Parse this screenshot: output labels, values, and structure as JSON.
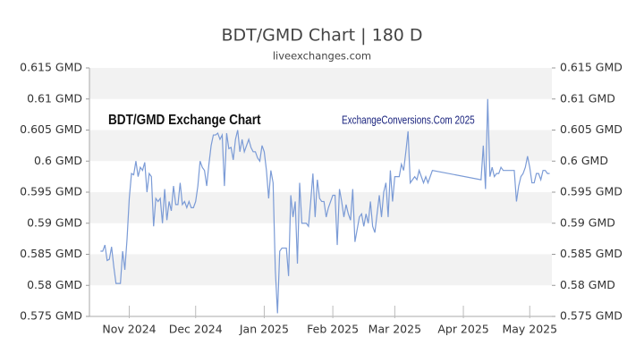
{
  "chart_data": {
    "type": "line",
    "title": "BDT/GMD Chart | 180 D",
    "subtitle": "liveexchanges.com",
    "annotations": [
      "BDT/GMD Exchange Chart",
      "ExchangeConversions.Com 2025"
    ],
    "color": "#7b9bd6",
    "band_color": "#f2f2f2",
    "x": [
      5,
      6,
      7,
      8,
      9,
      10,
      11,
      12,
      13,
      14,
      15,
      16,
      17,
      18,
      19,
      20,
      21,
      22,
      23,
      24,
      25,
      26,
      27,
      28,
      29,
      30,
      31,
      32,
      33,
      34,
      35,
      36,
      37,
      38,
      39,
      40,
      41,
      42,
      43,
      44,
      45,
      46,
      47,
      48,
      49,
      50,
      51,
      52,
      53,
      54,
      55,
      56,
      57,
      58,
      59,
      60,
      61,
      62,
      63,
      64,
      65,
      66,
      67,
      68,
      69,
      70,
      71,
      72,
      73,
      74,
      75,
      76,
      77,
      78,
      79,
      80,
      81,
      82,
      83,
      84,
      85,
      86,
      87,
      88,
      89,
      90,
      91,
      92,
      93,
      94,
      95,
      96,
      97,
      98,
      99,
      100,
      101,
      102,
      103,
      104,
      105,
      106,
      107,
      108,
      109,
      110,
      111,
      112,
      113,
      114,
      115,
      116,
      117,
      118,
      119,
      120,
      121,
      122,
      123,
      124,
      125,
      126,
      127,
      128,
      129,
      130,
      131,
      132,
      133,
      134,
      135,
      136,
      137,
      138,
      139,
      140,
      141,
      142,
      143,
      144,
      145,
      146,
      147,
      148,
      149,
      150,
      151,
      152,
      153,
      154,
      155,
      177,
      178,
      179,
      180,
      181,
      182,
      183,
      184,
      185,
      186,
      187,
      188,
      189,
      190,
      191,
      192,
      193,
      194,
      195,
      196,
      197,
      198,
      199,
      200,
      201,
      202,
      203,
      204,
      205,
      206,
      207,
      208
    ],
    "values": [
      0.5855,
      0.5855,
      0.5865,
      0.584,
      0.5842,
      0.5862,
      0.583,
      0.5803,
      0.5803,
      0.5803,
      0.5855,
      0.5825,
      0.5875,
      0.594,
      0.598,
      0.5978,
      0.6,
      0.5975,
      0.599,
      0.5985,
      0.5998,
      0.595,
      0.598,
      0.5975,
      0.5895,
      0.594,
      0.5935,
      0.594,
      0.59,
      0.5955,
      0.5905,
      0.5935,
      0.592,
      0.596,
      0.593,
      0.593,
      0.5965,
      0.593,
      0.5935,
      0.5925,
      0.5935,
      0.5925,
      0.5925,
      0.5935,
      0.596,
      0.6,
      0.599,
      0.5985,
      0.596,
      0.5995,
      0.6025,
      0.6042,
      0.6042,
      0.6045,
      0.6035,
      0.6042,
      0.596,
      0.6045,
      0.602,
      0.6022,
      0.6002,
      0.6035,
      0.605,
      0.6015,
      0.6035,
      0.6015,
      0.6025,
      0.6035,
      0.6022,
      0.6015,
      0.6015,
      0.6005,
      0.6,
      0.6025,
      0.6015,
      0.5985,
      0.594,
      0.5985,
      0.5965,
      0.5825,
      0.5755,
      0.5855,
      0.586,
      0.586,
      0.586,
      0.5815,
      0.5945,
      0.591,
      0.5935,
      0.5835,
      0.5965,
      0.59,
      0.59,
      0.59,
      0.5895,
      0.5935,
      0.598,
      0.591,
      0.597,
      0.594,
      0.5935,
      0.5935,
      0.591,
      0.5925,
      0.5935,
      0.5945,
      0.5945,
      0.5865,
      0.5955,
      0.5935,
      0.591,
      0.593,
      0.5915,
      0.5905,
      0.5955,
      0.587,
      0.589,
      0.591,
      0.5915,
      0.5895,
      0.5915,
      0.59,
      0.5935,
      0.5895,
      0.5885,
      0.5915,
      0.5945,
      0.591,
      0.595,
      0.5965,
      0.591,
      0.5985,
      0.5935,
      0.5975,
      0.5975,
      0.5975,
      0.5995,
      0.5985,
      0.6015,
      0.6048,
      0.5965,
      0.597,
      0.5975,
      0.597,
      0.5985,
      0.5975,
      0.5965,
      0.5975,
      0.5965,
      0.5975,
      0.5985,
      0.597,
      0.6025,
      0.5955,
      0.61,
      0.5975,
      0.599,
      0.5975,
      0.598,
      0.598,
      0.599,
      0.5985,
      0.5985,
      0.5985,
      0.5985,
      0.5985,
      0.5985,
      0.5935,
      0.596,
      0.5975,
      0.598,
      0.599,
      0.6008,
      0.599,
      0.5965,
      0.5965,
      0.598,
      0.598,
      0.597,
      0.5985,
      0.5985,
      0.598,
      0.598
    ],
    "xlim": [
      0,
      209
    ],
    "xticks": [
      {
        "value": 18,
        "label": "Nov 2024"
      },
      {
        "value": 48,
        "label": "Dec 2024"
      },
      {
        "value": 79,
        "label": "Jan 2025"
      },
      {
        "value": 110,
        "label": "Feb 2025"
      },
      {
        "value": 138,
        "label": "Mar 2025"
      },
      {
        "value": 169,
        "label": "Apr 2025"
      },
      {
        "value": 199,
        "label": "May 2025"
      }
    ],
    "ylim": [
      0.575,
      0.615
    ],
    "yticks": [
      {
        "value": 0.575,
        "label": "0.575 GMD"
      },
      {
        "value": 0.58,
        "label": "0.58 GMD"
      },
      {
        "value": 0.585,
        "label": "0.585 GMD"
      },
      {
        "value": 0.59,
        "label": "0.59 GMD"
      },
      {
        "value": 0.595,
        "label": "0.595 GMD"
      },
      {
        "value": 0.6,
        "label": "0.6 GMD"
      },
      {
        "value": 0.605,
        "label": "0.605 GMD"
      },
      {
        "value": 0.61,
        "label": "0.61 GMD"
      },
      {
        "value": 0.615,
        "label": "0.615 GMD"
      }
    ]
  }
}
